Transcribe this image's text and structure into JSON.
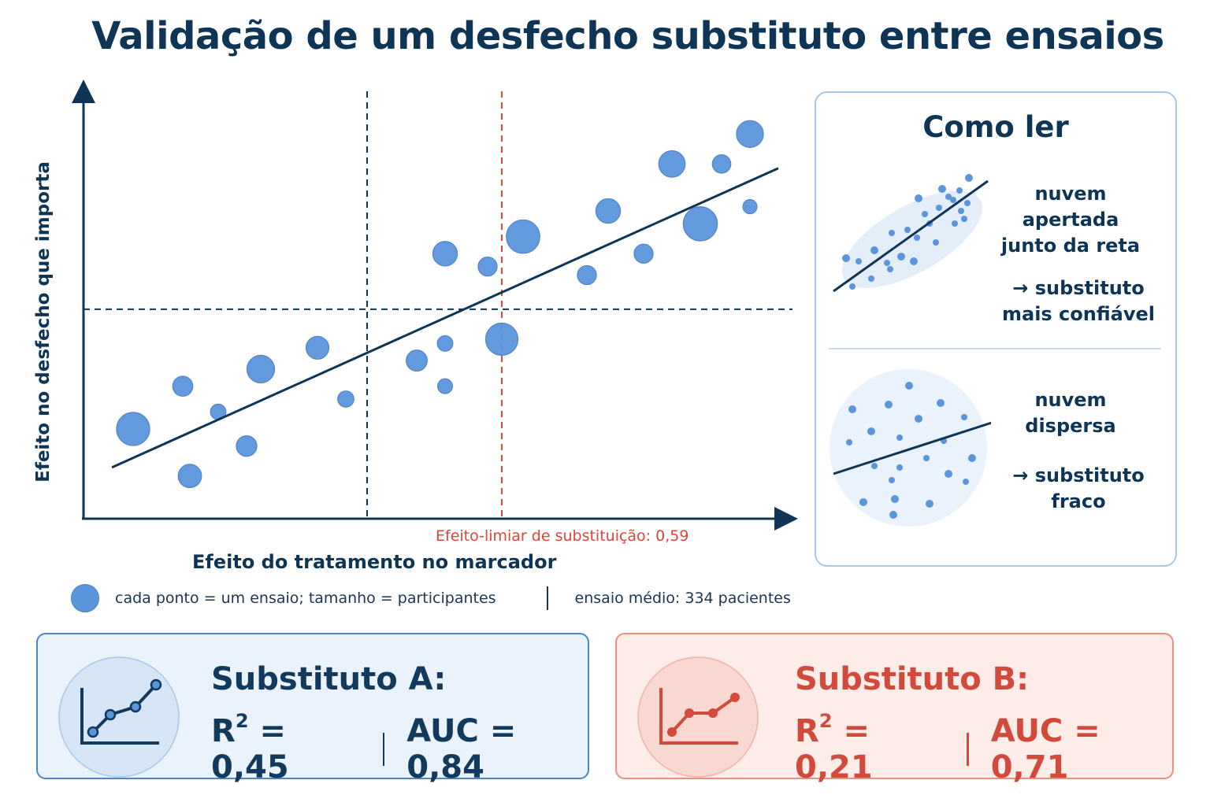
{
  "title": "Validação de um desfecho substituto entre ensaios",
  "chart_data": {
    "type": "scatter",
    "title": "Validação de um desfecho substituto entre ensaios",
    "xlabel": "Efeito do tratamento no marcador",
    "ylabel": "Efeito no desfecho que importa",
    "xlim": [
      0,
      1
    ],
    "ylim": [
      0,
      1
    ],
    "threshold": {
      "x": 0.59,
      "label": "Efeito-limiar de substituição: 0,59",
      "color": "#e0443a"
    },
    "reference_lines": {
      "vertical_x": 0.4,
      "horizontal_y": 0.49
    },
    "marker_color": "#5b95dc",
    "line_color": "#0f3556",
    "fit_line": {
      "x": [
        0.04,
        0.98
      ],
      "y": [
        0.12,
        0.82
      ]
    },
    "points": [
      {
        "x": 0.07,
        "y": 0.21,
        "size": 550
      },
      {
        "x": 0.14,
        "y": 0.31,
        "size": 200
      },
      {
        "x": 0.15,
        "y": 0.1,
        "size": 270
      },
      {
        "x": 0.19,
        "y": 0.25,
        "size": 120
      },
      {
        "x": 0.23,
        "y": 0.17,
        "size": 210
      },
      {
        "x": 0.25,
        "y": 0.35,
        "size": 380
      },
      {
        "x": 0.33,
        "y": 0.4,
        "size": 260
      },
      {
        "x": 0.37,
        "y": 0.28,
        "size": 130
      },
      {
        "x": 0.47,
        "y": 0.37,
        "size": 220
      },
      {
        "x": 0.51,
        "y": 0.41,
        "size": 120
      },
      {
        "x": 0.51,
        "y": 0.31,
        "size": 110
      },
      {
        "x": 0.51,
        "y": 0.62,
        "size": 300
      },
      {
        "x": 0.57,
        "y": 0.59,
        "size": 180
      },
      {
        "x": 0.59,
        "y": 0.42,
        "size": 520
      },
      {
        "x": 0.62,
        "y": 0.66,
        "size": 560
      },
      {
        "x": 0.71,
        "y": 0.57,
        "size": 180
      },
      {
        "x": 0.74,
        "y": 0.72,
        "size": 300
      },
      {
        "x": 0.79,
        "y": 0.62,
        "size": 180
      },
      {
        "x": 0.83,
        "y": 0.83,
        "size": 350
      },
      {
        "x": 0.87,
        "y": 0.69,
        "size": 580
      },
      {
        "x": 0.9,
        "y": 0.83,
        "size": 170
      },
      {
        "x": 0.94,
        "y": 0.73,
        "size": 100
      },
      {
        "x": 0.94,
        "y": 0.9,
        "size": 360
      }
    ]
  },
  "legend": {
    "point_text": "cada ponto = um ensaio; tamanho = participantes",
    "mean_text": "ensaio médio: 334 pacientes"
  },
  "howto": {
    "title": "Como ler",
    "tight_desc": "nuvem\napertada\njunto da reta",
    "tight_result": "→ substituto\nmais confiável",
    "loose_desc": "nuvem\ndispersa",
    "loose_result": "→ substituto\nfraco"
  },
  "cards": {
    "a": {
      "name": "Substituto A:",
      "r2_label": "R",
      "r2_sup": "2",
      "r2_value": " = 0,45",
      "auc": "AUC = 0,84",
      "color": "#123a5c"
    },
    "b": {
      "name": "Substituto B:",
      "r2_label": "R",
      "r2_sup": "2",
      "r2_value": " = 0,21",
      "auc": "AUC = 0,71",
      "color": "#d24a3b"
    }
  }
}
